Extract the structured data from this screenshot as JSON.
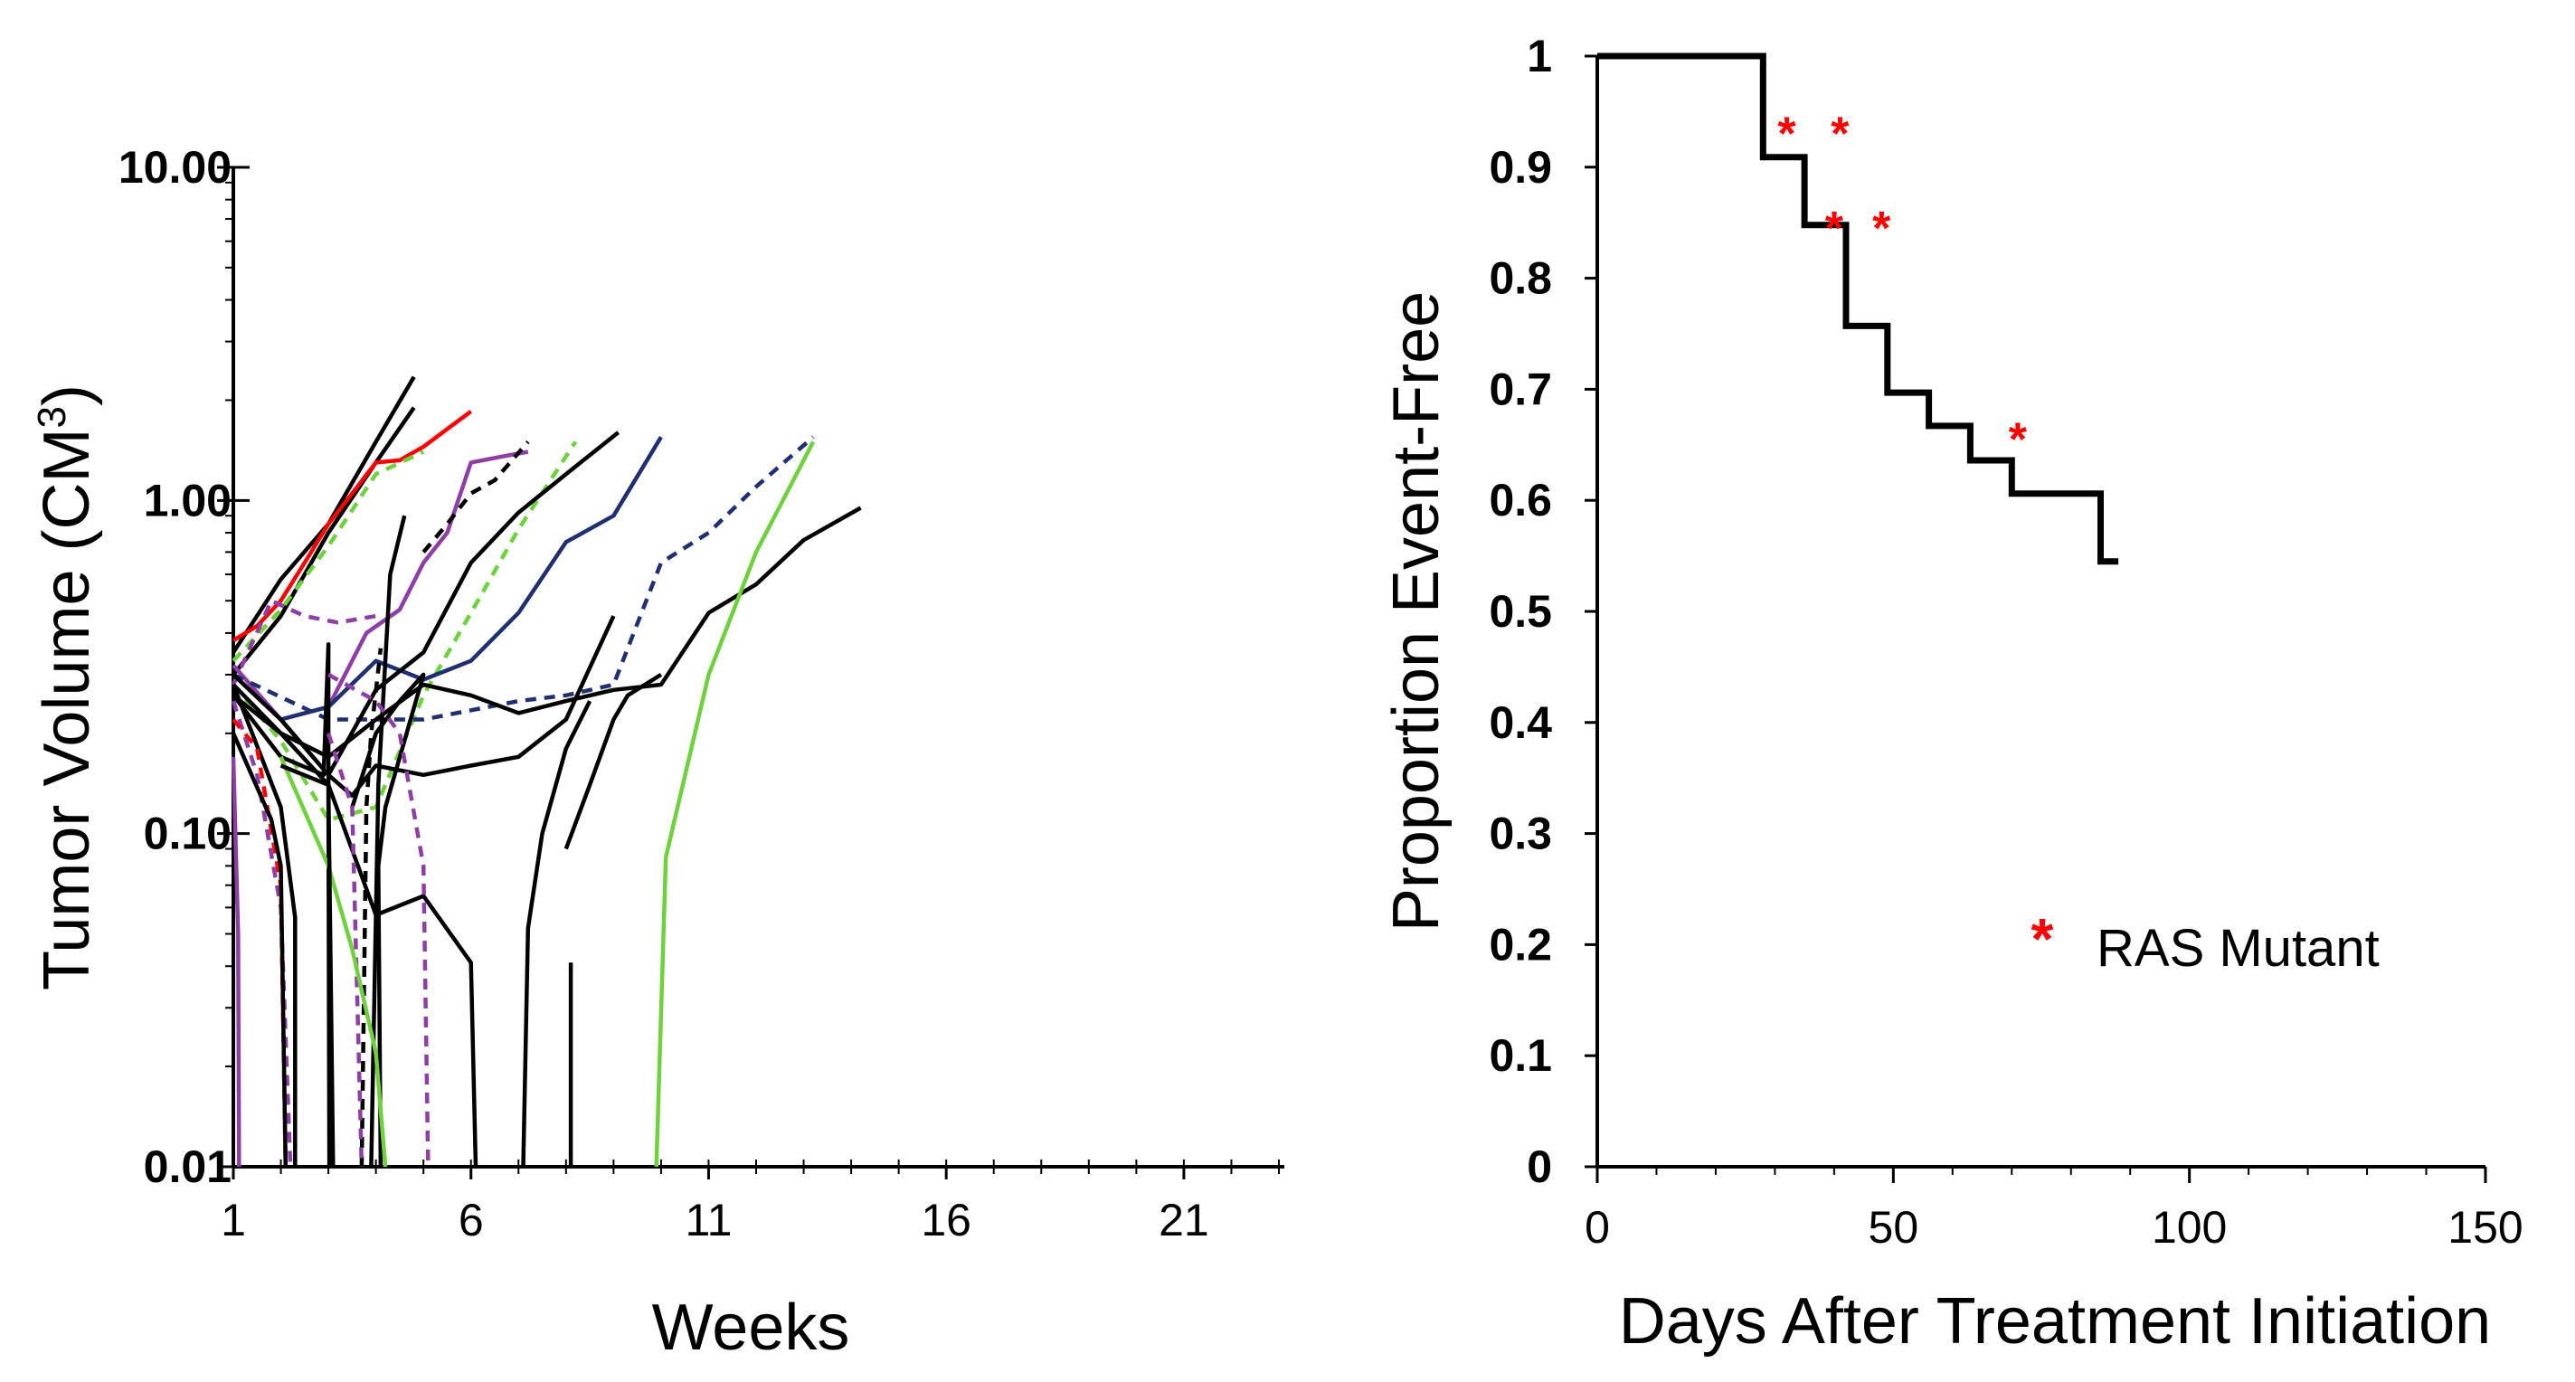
{
  "chart_data": [
    {
      "type": "line",
      "panel": "left",
      "yscale": "log",
      "xlabel": "Weeks",
      "ylabel_main": "Tumor Volume (CM",
      "ylabel_sup": "3",
      "ylabel_close": ")",
      "xlim": [
        1,
        23
      ],
      "ylim": [
        0.01,
        10
      ],
      "xticks": [
        1,
        6,
        11,
        16,
        21
      ],
      "xtick_labels": [
        "1",
        "6",
        "11",
        "16",
        "21"
      ],
      "yticks": [
        0.01,
        0.1,
        1,
        10
      ],
      "ytick_labels": [
        "0.01",
        "0.10",
        "1.00",
        "10.00"
      ],
      "colors": {
        "black": "#000000",
        "red": "#ff0000",
        "purple": "#8e3fa6",
        "green": "#6fd13e",
        "navy": "#1f2f70"
      },
      "series": [
        {
          "name": "s1",
          "color": "black",
          "dash": false,
          "x": [
            1,
            2,
            3,
            4,
            4.8
          ],
          "y": [
            0.35,
            0.58,
            0.85,
            1.5,
            2.35
          ]
        },
        {
          "name": "s2",
          "color": "black",
          "dash": false,
          "x": [
            1,
            2,
            3,
            4,
            4.8
          ],
          "y": [
            0.3,
            0.45,
            0.8,
            1.3,
            1.9
          ]
        },
        {
          "name": "s3",
          "color": "red",
          "dash": false,
          "x": [
            1,
            1.5,
            2,
            2.5,
            3,
            3.5,
            4,
            4.5,
            5,
            6
          ],
          "y": [
            0.38,
            0.42,
            0.5,
            0.65,
            0.85,
            1.05,
            1.3,
            1.32,
            1.45,
            1.85
          ]
        },
        {
          "name": "s4",
          "color": "green",
          "dash": true,
          "x": [
            1,
            2,
            3,
            4,
            5
          ],
          "y": [
            0.33,
            0.47,
            0.73,
            1.2,
            1.4
          ]
        },
        {
          "name": "s5",
          "color": "purple",
          "dash": false,
          "x": [
            1,
            2,
            3,
            3.8,
            4.5,
            5,
            5.5,
            6,
            6.6,
            7.2
          ],
          "y": [
            0.32,
            0.22,
            0.24,
            0.4,
            0.47,
            0.65,
            0.8,
            1.3,
            1.35,
            1.4
          ]
        },
        {
          "name": "s6",
          "color": "purple",
          "dash": true,
          "x": [
            1,
            1.8,
            2.5,
            3.2,
            4
          ],
          "y": [
            0.28,
            0.5,
            0.45,
            0.43,
            0.45
          ]
        },
        {
          "name": "s7",
          "color": "black",
          "dash": true,
          "x": [
            5,
            5.5,
            6,
            6.5,
            7.2
          ],
          "y": [
            0.7,
            0.85,
            1.05,
            1.15,
            1.5
          ]
        },
        {
          "name": "s8",
          "color": "green",
          "dash": true,
          "x": [
            1,
            2,
            3,
            4,
            5,
            6,
            7,
            8.2
          ],
          "y": [
            0.28,
            0.19,
            0.11,
            0.12,
            0.26,
            0.46,
            0.82,
            1.5
          ]
        },
        {
          "name": "s9",
          "color": "navy",
          "dash": false,
          "x": [
            1,
            2,
            3,
            4,
            5,
            6,
            7,
            8,
            9,
            10
          ],
          "y": [
            0.3,
            0.22,
            0.24,
            0.33,
            0.29,
            0.33,
            0.46,
            0.75,
            0.9,
            1.55
          ]
        },
        {
          "name": "s10",
          "color": "navy",
          "dash": true,
          "x": [
            1,
            3,
            5,
            7,
            8,
            9,
            10,
            11,
            12,
            13.2
          ],
          "y": [
            0.3,
            0.22,
            0.22,
            0.25,
            0.26,
            0.28,
            0.65,
            0.8,
            1.1,
            1.55
          ]
        },
        {
          "name": "s11",
          "color": "black",
          "dash": false,
          "x": [
            1,
            2,
            3,
            4,
            5,
            6,
            7,
            8,
            9.1
          ],
          "y": [
            0.3,
            0.22,
            0.15,
            0.27,
            0.35,
            0.65,
            0.92,
            1.2,
            1.6
          ]
        },
        {
          "name": "s12",
          "color": "black",
          "dash": false,
          "x": [
            1,
            2,
            3,
            4,
            5,
            6,
            7,
            8,
            9,
            10,
            11,
            12,
            13,
            14.2
          ],
          "y": [
            0.28,
            0.2,
            0.17,
            0.22,
            0.28,
            0.26,
            0.23,
            0.25,
            0.27,
            0.28,
            0.46,
            0.56,
            0.76,
            0.95
          ]
        },
        {
          "name": "s13",
          "color": "black",
          "dash": false,
          "x": [
            1,
            2,
            3,
            3.5,
            4,
            5,
            6,
            7,
            8,
            9
          ],
          "y": [
            0.3,
            0.22,
            0.15,
            0.13,
            0.16,
            0.15,
            0.16,
            0.17,
            0.22,
            0.45
          ]
        },
        {
          "name": "s14",
          "color": "black",
          "dash": false,
          "x": [
            8,
            8.5,
            9,
            9.3,
            10
          ],
          "y": [
            0.09,
            0.14,
            0.22,
            0.26,
            0.3
          ]
        },
        {
          "name": "s15",
          "color": "black",
          "dash": false,
          "x": [
            7.1,
            7.2,
            7.5,
            8,
            8.5
          ],
          "y": [
            0.01,
            0.052,
            0.1,
            0.18,
            0.25
          ]
        },
        {
          "name": "s16",
          "color": "green",
          "dash": false,
          "x": [
            9.9,
            10.1,
            11,
            12,
            13.2
          ],
          "y": [
            0.01,
            0.085,
            0.3,
            0.7,
            1.5
          ]
        },
        {
          "name": "s17",
          "color": "black",
          "dash": false,
          "x": [
            1,
            2,
            3,
            4,
            5,
            6,
            6.1
          ],
          "y": [
            0.26,
            0.2,
            0.14,
            0.057,
            0.065,
            0.041,
            0.01
          ]
        },
        {
          "name": "s18",
          "color": "black",
          "dash": false,
          "x": [
            8.1,
            8.1
          ],
          "y": [
            0.041,
            0.01
          ]
        },
        {
          "name": "s19",
          "color": "black",
          "dash": false,
          "x": [
            1,
            2,
            2.3,
            2.3
          ],
          "y": [
            0.28,
            0.12,
            0.056,
            0.01
          ]
        },
        {
          "name": "s20",
          "color": "black",
          "dash": false,
          "x": [
            1,
            2,
            2.9,
            3,
            3,
            3.02
          ],
          "y": [
            0.26,
            0.17,
            0.15,
            0.37,
            0.12,
            0.01
          ]
        },
        {
          "name": "s21",
          "color": "black",
          "dash": false,
          "x": [
            3.5,
            4,
            4.5,
            5,
            4.2,
            4.05,
            4.1
          ],
          "y": [
            0.12,
            0.2,
            0.25,
            0.3,
            0.12,
            0.08,
            0.01
          ]
        },
        {
          "name": "s22",
          "color": "black",
          "dash": true,
          "x": [
            3.7,
            3.8,
            3.9,
            4.1
          ],
          "y": [
            0.01,
            0.12,
            0.2,
            0.36
          ]
        },
        {
          "name": "s23",
          "color": "black",
          "dash": false,
          "x": [
            3.9,
            4.05,
            4.3,
            4.6
          ],
          "y": [
            0.01,
            0.14,
            0.6,
            0.9
          ]
        },
        {
          "name": "s24",
          "color": "purple",
          "dash": false,
          "x": [
            1,
            1.1,
            1.12
          ],
          "y": [
            0.17,
            0.05,
            0.01
          ]
        },
        {
          "name": "s25",
          "color": "purple",
          "dash": true,
          "x": [
            1,
            1.5,
            2,
            2.2
          ],
          "y": [
            0.25,
            0.15,
            0.06,
            0.01
          ]
        },
        {
          "name": "s26",
          "color": "red",
          "dash": true,
          "x": [
            1,
            1.5,
            2,
            2.1
          ],
          "y": [
            0.22,
            0.18,
            0.07,
            0.01
          ]
        },
        {
          "name": "s27",
          "color": "purple",
          "dash": true,
          "x": [
            3,
            4,
            4.5,
            5,
            5.1
          ],
          "y": [
            0.3,
            0.25,
            0.2,
            0.08,
            0.01
          ]
        },
        {
          "name": "s28",
          "color": "purple",
          "dash": true,
          "x": [
            3,
            3.5,
            3.7
          ],
          "y": [
            0.2,
            0.12,
            0.01
          ]
        },
        {
          "name": "s29",
          "color": "green",
          "dash": false,
          "x": [
            2,
            3,
            3.5,
            4,
            4.2
          ],
          "y": [
            0.17,
            0.08,
            0.045,
            0.022,
            0.01
          ]
        },
        {
          "name": "s30",
          "color": "black",
          "dash": false,
          "x": [
            1,
            1.8,
            2,
            2.1
          ],
          "y": [
            0.2,
            0.11,
            0.08,
            0.01
          ]
        },
        {
          "name": "s31",
          "color": "black",
          "dash": false,
          "x": [
            2,
            3,
            3.1
          ],
          "y": [
            0.16,
            0.14,
            0.01
          ]
        }
      ]
    },
    {
      "type": "step",
      "panel": "right",
      "xlabel": "Days After Treatment Initiation",
      "ylabel": "Proportion Event-Free",
      "xlim": [
        0,
        150
      ],
      "ylim": [
        0,
        1
      ],
      "xticks": [
        0,
        50,
        100,
        150
      ],
      "xtick_labels": [
        "0",
        "50",
        "100",
        "150"
      ],
      "yticks": [
        0,
        0.1,
        0.2,
        0.3,
        0.4,
        0.5,
        0.6,
        0.7,
        0.8,
        0.9,
        1
      ],
      "ytick_labels": [
        "0",
        "0.1",
        "0.2",
        "0.3",
        "0.4",
        "0.5",
        "0.6",
        "0.7",
        "0.8",
        "0.9",
        "1"
      ],
      "x": [
        0,
        28,
        35,
        42,
        49,
        56,
        63,
        70,
        85,
        88
      ],
      "y": [
        1,
        0.909,
        0.848,
        0.757,
        0.697,
        0.667,
        0.636,
        0.606,
        0.545,
        0.545
      ],
      "markers": [
        {
          "label": "*",
          "x": 32,
          "y": 0.94
        },
        {
          "label": "*",
          "x": 41,
          "y": 0.94
        },
        {
          "label": "*",
          "x": 40,
          "y": 0.855
        },
        {
          "label": "*",
          "x": 48,
          "y": 0.855
        },
        {
          "label": "*",
          "x": 71,
          "y": 0.665
        }
      ],
      "legend": {
        "symbol": "*",
        "text": "RAS Mutant",
        "placement": "lower-right",
        "color": "#ff0000"
      }
    }
  ]
}
